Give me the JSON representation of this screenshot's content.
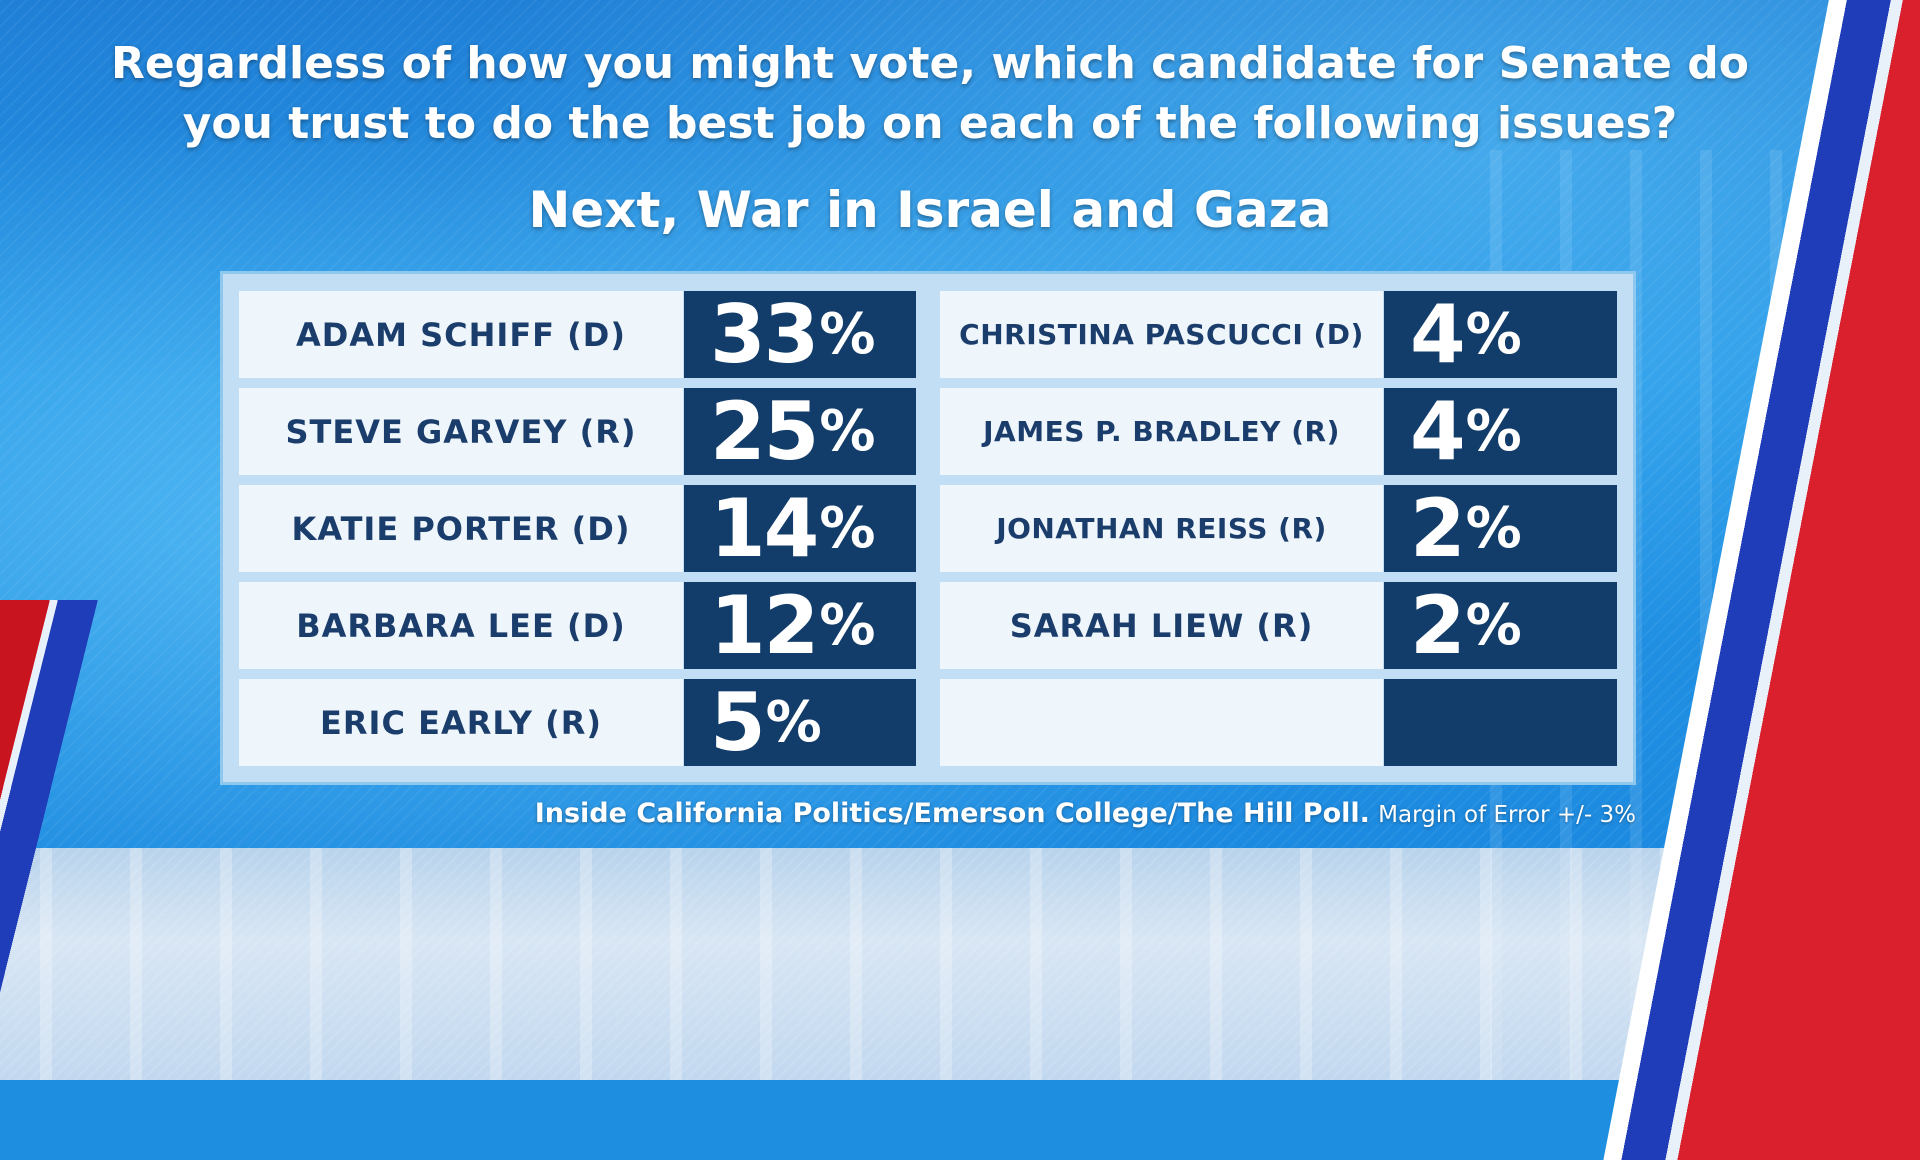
{
  "title": "Regardless of how you might vote, which candidate for Senate do you trust to do the best job on each of the following issues?",
  "subtitle": "Next, War in Israel and Gaza",
  "left_column": [
    {
      "name": "ADAM SCHIFF (D)",
      "value": "33",
      "pct": "%"
    },
    {
      "name": "STEVE GARVEY (R)",
      "value": "25",
      "pct": "%"
    },
    {
      "name": "KATIE PORTER (D)",
      "value": "14",
      "pct": "%"
    },
    {
      "name": "BARBARA LEE (D)",
      "value": "12",
      "pct": "%"
    },
    {
      "name": "ERIC EARLY (R)",
      "value": "5",
      "pct": "%"
    }
  ],
  "right_column": [
    {
      "name": "CHRISTINA PASCUCCI (D)",
      "value": "4",
      "pct": "%"
    },
    {
      "name": "JAMES P. BRADLEY (R)",
      "value": "4",
      "pct": "%"
    },
    {
      "name": "JONATHAN REISS (R)",
      "value": "2",
      "pct": "%"
    },
    {
      "name": "SARAH LIEW (R)",
      "value": "2",
      "pct": "%"
    },
    {
      "name": "",
      "value": "",
      "pct": ""
    }
  ],
  "source": {
    "poll": "Inside California Politics/Emerson College/The Hill Poll.",
    "margin": "Margin of Error +/- 3%"
  },
  "colors": {
    "value_cell": "#123c69",
    "name_cell": "#eef5fb",
    "name_text": "#1a3d6c",
    "panel": "#c2def5",
    "stripe_red": "#d9202c",
    "stripe_blue": "#1f3db8"
  }
}
